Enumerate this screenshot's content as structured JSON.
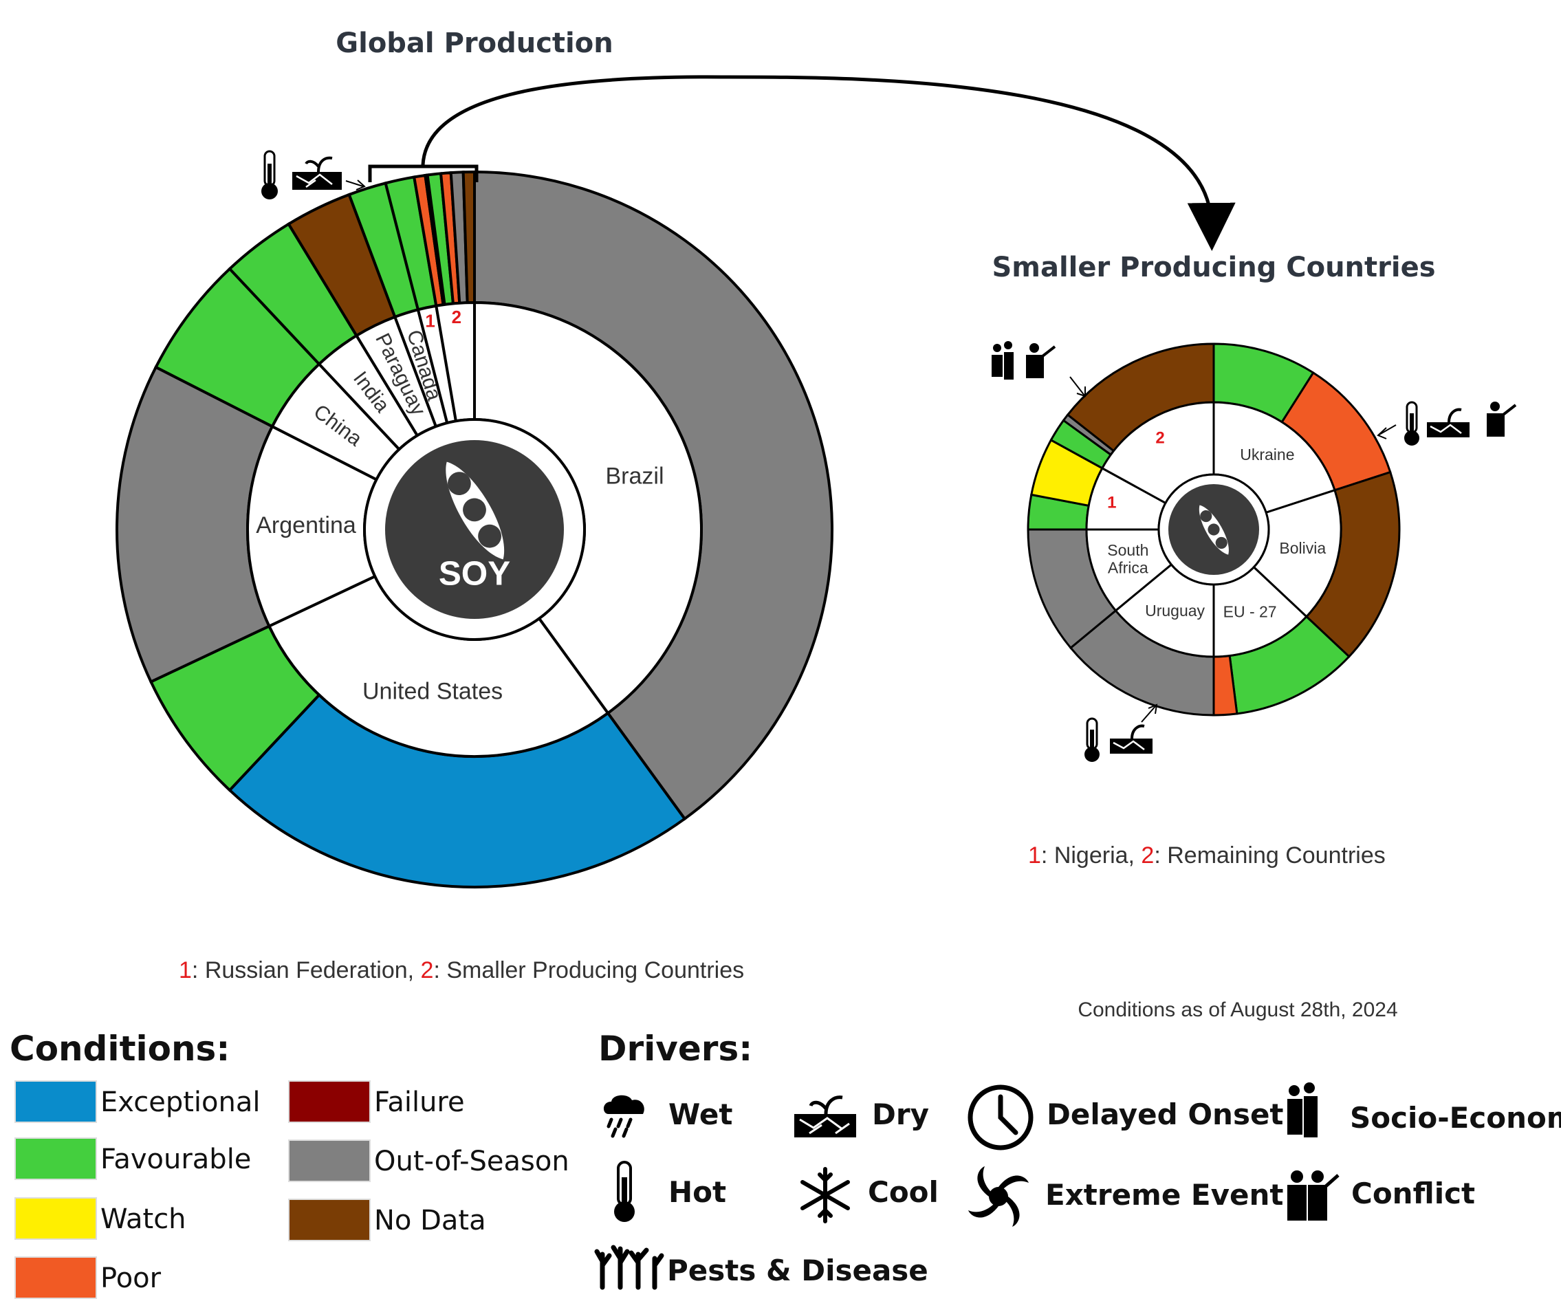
{
  "colors": {
    "Exceptional": "#0a8ccb",
    "Favourable": "#44cf3e",
    "Watch": "#ffef00",
    "Poor": "#f15a24",
    "Failure": "#8b0000",
    "Out-of-Season": "#808080",
    "No Data": "#7a3d05",
    "hub": "#3c3c3c"
  },
  "chart_data": [
    {
      "type": "pie",
      "title": "Global Production",
      "center_label": "SOY",
      "segments": [
        {
          "label": "Brazil",
          "value": 40.0,
          "outer": [
            {
              "condition": "Out-of-Season",
              "value": 40.0
            }
          ]
        },
        {
          "label": "United States",
          "value": 28.0,
          "outer": [
            {
              "condition": "Exceptional",
              "value": 22.0
            },
            {
              "condition": "Favourable",
              "value": 6.0
            }
          ]
        },
        {
          "label": "Argentina",
          "value": 14.5,
          "outer": [
            {
              "condition": "Out-of-Season",
              "value": 14.5
            }
          ]
        },
        {
          "label": "China",
          "value": 5.5,
          "outer": [
            {
              "condition": "Favourable",
              "value": 5.5
            }
          ]
        },
        {
          "label": "India",
          "value": 3.3,
          "outer": [
            {
              "condition": "Favourable",
              "value": 3.3
            }
          ]
        },
        {
          "label": "Paraguay",
          "value": 3.0,
          "outer": [
            {
              "condition": "No Data",
              "value": 3.0
            }
          ]
        },
        {
          "label": "Canada",
          "value": 1.7,
          "outer": [
            {
              "condition": "Favourable",
              "value": 1.7
            }
          ]
        },
        {
          "label": "1",
          "value": 1.3,
          "outer": [
            {
              "condition": "Favourable",
              "value": 1.3
            }
          ]
        },
        {
          "label": "2",
          "value": 2.7,
          "outer": [
            {
              "condition": "Poor",
              "value": 0.5
            },
            {
              "condition": "Watch",
              "value": 0.1
            },
            {
              "condition": "Favourable",
              "value": 0.6
            },
            {
              "condition": "Poor",
              "value": 0.45
            },
            {
              "condition": "Out-of-Season",
              "value": 0.55
            },
            {
              "condition": "No Data",
              "value": 0.5
            }
          ]
        }
      ],
      "footnote": [
        {
          "num": "1",
          "text": ": Russian Federation, "
        },
        {
          "num": "2",
          "text": ": Smaller Producing Countries"
        }
      ]
    },
    {
      "type": "pie",
      "title": "Smaller Producing Countries",
      "segments": [
        {
          "label": "Ukraine",
          "value": 20.0,
          "outer": [
            {
              "condition": "Favourable",
              "value": 9.0
            },
            {
              "condition": "Poor",
              "value": 11.0
            }
          ]
        },
        {
          "label": "Bolivia",
          "value": 17.0,
          "outer": [
            {
              "condition": "No Data",
              "value": 17.0
            }
          ]
        },
        {
          "label": "EU - 27",
          "value": 13.0,
          "outer": [
            {
              "condition": "Favourable",
              "value": 11.0
            },
            {
              "condition": "Poor",
              "value": 2.0
            }
          ]
        },
        {
          "label": "Uruguay",
          "value": 14.0,
          "outer": [
            {
              "condition": "Out-of-Season",
              "value": 14.0
            }
          ]
        },
        {
          "label": "South Africa",
          "value": 11.0,
          "outer": [
            {
              "condition": "Out-of-Season",
              "value": 11.0
            }
          ]
        },
        {
          "label": "1",
          "value": 8.0,
          "outer": [
            {
              "condition": "Favourable",
              "value": 3.0
            },
            {
              "condition": "Watch",
              "value": 5.0
            }
          ]
        },
        {
          "label": "2",
          "value": 17.0,
          "outer": [
            {
              "condition": "Favourable",
              "value": 2.0
            },
            {
              "condition": "Out-of-Season",
              "value": 0.6
            },
            {
              "condition": "No Data",
              "value": 14.4
            }
          ]
        }
      ],
      "footnote": [
        {
          "num": "1",
          "text": ": Nigeria, "
        },
        {
          "num": "2",
          "text": ": Remaining Countries"
        }
      ]
    }
  ],
  "date_note": "Conditions as of August 28th, 2024",
  "legend": {
    "conditions_title": "Conditions:",
    "conditions": [
      "Exceptional",
      "Favourable",
      "Watch",
      "Poor",
      "Failure",
      "Out-of-Season",
      "No Data"
    ],
    "drivers_title": "Drivers:",
    "drivers": [
      "Wet",
      "Dry",
      "Delayed Onset",
      "Socio-Economic",
      "Hot",
      "Cool",
      "Extreme Event",
      "Conflict",
      "Pests & Disease"
    ]
  }
}
